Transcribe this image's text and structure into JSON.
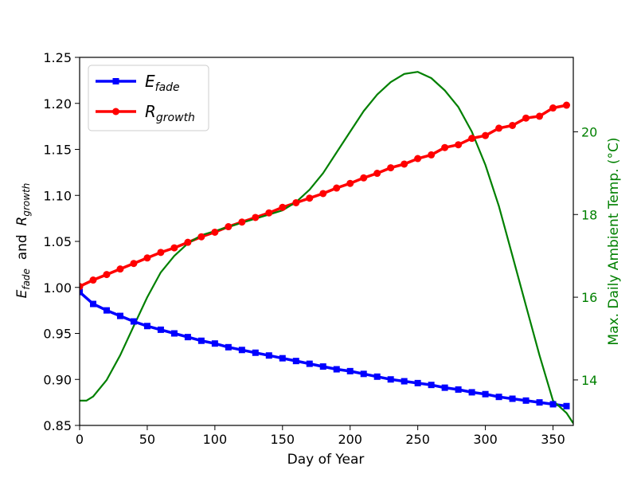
{
  "chart_data": {
    "type": "line",
    "title": "",
    "xlabel": "Day of Year",
    "ylabel": {
      "main1": "E",
      "sub1": "fade",
      "mid": "  and  ",
      "main2": "R",
      "sub2": "growth"
    },
    "y2label": "Max. Daily Ambient Temp. (°C)",
    "xlim": [
      0,
      365
    ],
    "ylim": [
      0.85,
      1.25
    ],
    "y2lim": [
      12.9,
      21.8
    ],
    "xticks": [
      0,
      50,
      100,
      150,
      200,
      250,
      300,
      350
    ],
    "yticks": [
      0.85,
      0.9,
      0.95,
      1.0,
      1.05,
      1.1,
      1.15,
      1.2,
      1.25
    ],
    "y2ticks": [
      14,
      16,
      18,
      20
    ],
    "grid": false,
    "legend_position": "top-left",
    "colors": {
      "e_fade": "#0000ff",
      "r_growth": "#ff0000",
      "temperature": "#008000"
    },
    "series": [
      {
        "name": "E_fade",
        "legend_main": "E",
        "legend_sub": "fade",
        "marker": "square",
        "color": "#0000ff",
        "x": [
          0,
          10,
          20,
          30,
          40,
          50,
          60,
          70,
          80,
          90,
          100,
          110,
          120,
          130,
          140,
          150,
          160,
          170,
          180,
          190,
          200,
          210,
          220,
          230,
          240,
          250,
          260,
          270,
          280,
          290,
          300,
          310,
          320,
          330,
          340,
          350,
          360
        ],
        "y": [
          0.995,
          0.982,
          0.975,
          0.969,
          0.963,
          0.958,
          0.954,
          0.95,
          0.946,
          0.942,
          0.939,
          0.935,
          0.932,
          0.929,
          0.926,
          0.923,
          0.92,
          0.917,
          0.914,
          0.911,
          0.909,
          0.906,
          0.903,
          0.9,
          0.898,
          0.896,
          0.894,
          0.891,
          0.889,
          0.886,
          0.884,
          0.881,
          0.879,
          0.877,
          0.875,
          0.873,
          0.871
        ]
      },
      {
        "name": "R_growth",
        "legend_main": "R",
        "legend_sub": "growth",
        "marker": "circle",
        "color": "#ff0000",
        "x": [
          0,
          10,
          20,
          30,
          40,
          50,
          60,
          70,
          80,
          90,
          100,
          110,
          120,
          130,
          140,
          150,
          160,
          170,
          180,
          190,
          200,
          210,
          220,
          230,
          240,
          250,
          260,
          270,
          280,
          290,
          300,
          310,
          320,
          330,
          340,
          350,
          360
        ],
        "y": [
          1.001,
          1.008,
          1.014,
          1.02,
          1.026,
          1.032,
          1.038,
          1.043,
          1.049,
          1.055,
          1.06,
          1.066,
          1.071,
          1.076,
          1.081,
          1.087,
          1.092,
          1.097,
          1.102,
          1.108,
          1.113,
          1.119,
          1.124,
          1.13,
          1.134,
          1.14,
          1.144,
          1.152,
          1.155,
          1.162,
          1.165,
          1.173,
          1.176,
          1.184,
          1.186,
          1.195,
          1.198
        ]
      },
      {
        "name": "Max. Daily Ambient Temp.",
        "axis": "right",
        "marker": "none",
        "color": "#008000",
        "x": [
          0,
          5,
          10,
          20,
          30,
          40,
          50,
          60,
          70,
          80,
          90,
          100,
          110,
          120,
          130,
          140,
          150,
          160,
          170,
          180,
          190,
          200,
          210,
          220,
          230,
          240,
          250,
          260,
          270,
          280,
          290,
          300,
          310,
          320,
          330,
          340,
          350,
          360,
          365
        ],
        "y": [
          13.5,
          13.5,
          13.6,
          14.0,
          14.6,
          15.3,
          16.0,
          16.6,
          17.0,
          17.3,
          17.5,
          17.6,
          17.7,
          17.8,
          17.9,
          18.0,
          18.1,
          18.3,
          18.6,
          19.0,
          19.5,
          20.0,
          20.5,
          20.9,
          21.2,
          21.4,
          21.45,
          21.3,
          21.0,
          20.6,
          20.0,
          19.2,
          18.2,
          17.0,
          15.8,
          14.6,
          13.5,
          13.2,
          12.95
        ]
      }
    ]
  }
}
